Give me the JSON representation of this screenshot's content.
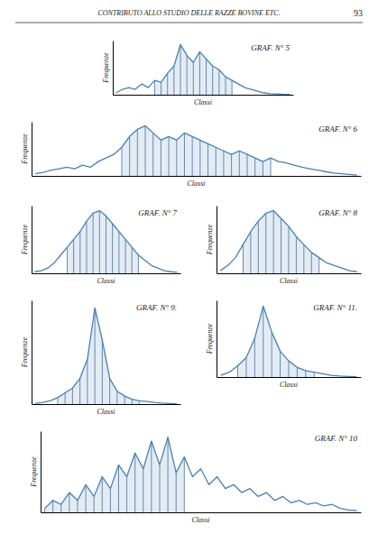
{
  "title": "CONTRIBUTO ALLO STUDIO DELLE RAZZE BOVINE ETC.",
  "annotations": [
    "93"
  ],
  "chart_data": [
    {
      "type": "line",
      "title": "GRAF. N° 5",
      "x_label": "Classi",
      "y_label": "Frequenze",
      "categories": [
        null,
        null,
        null,
        null,
        null,
        null,
        null,
        null,
        null,
        null,
        null,
        null,
        null,
        null,
        null,
        null,
        null,
        null,
        null,
        null,
        null,
        null,
        null,
        null,
        null,
        null,
        null,
        null
      ],
      "series": [
        {
          "type": "line",
          "values": [
            0.5,
            1.5,
            2,
            1.5,
            3,
            2,
            4,
            3.5,
            6,
            8,
            14,
            11,
            9,
            12,
            10,
            8,
            7,
            5,
            4,
            3,
            2,
            1.5,
            1,
            0.5,
            0.3,
            0.2,
            0.1,
            0.1
          ]
        },
        {
          "type": "bar",
          "values": [
            null,
            null,
            null,
            null,
            null,
            null,
            4,
            3.5,
            6,
            8,
            14,
            11,
            9,
            12,
            10,
            8,
            7,
            5,
            4,
            null,
            null,
            null,
            null,
            null,
            null,
            null,
            null,
            null
          ]
        }
      ],
      "ylim": [
        0,
        15.12
      ],
      "tick_labels": false,
      "grid": false
    },
    {
      "type": "line",
      "title": "GRAF. N° 6",
      "x_label": "Classi",
      "y_label": "Frequenze",
      "categories": [
        null,
        null,
        null,
        null,
        null,
        null,
        null,
        null,
        null,
        null,
        null,
        null,
        null,
        null,
        null,
        null,
        null,
        null,
        null,
        null,
        null,
        null,
        null,
        null,
        null,
        null,
        null,
        null,
        null,
        null,
        null,
        null,
        null,
        null,
        null,
        null,
        null,
        null,
        null,
        null,
        null,
        null
      ],
      "series": [
        {
          "type": "line",
          "values": [
            0.3,
            0.5,
            0.8,
            1.0,
            1.2,
            1.0,
            1.5,
            1.2,
            2.0,
            2.5,
            3.0,
            4.0,
            5.5,
            6.5,
            7.0,
            6.0,
            5.0,
            5.5,
            5.0,
            6.0,
            5.5,
            5.0,
            4.5,
            4.0,
            3.5,
            3.0,
            3.5,
            3.0,
            2.5,
            2.0,
            2.5,
            2.0,
            1.8,
            1.5,
            1.2,
            1.0,
            0.8,
            0.6,
            0.4,
            0.3,
            0.2,
            0.1
          ]
        },
        {
          "type": "bar",
          "values": [
            null,
            null,
            null,
            null,
            null,
            null,
            null,
            null,
            null,
            null,
            null,
            4.0,
            5.5,
            6.5,
            7.0,
            6.0,
            5.0,
            5.5,
            5.0,
            6.0,
            5.5,
            5.0,
            4.5,
            4.0,
            3.5,
            3.0,
            3.5,
            3.0,
            2.5,
            2.0,
            2.5,
            null,
            null,
            null,
            null,
            null,
            null,
            null,
            null,
            null,
            null,
            null
          ]
        }
      ],
      "ylim": [
        0,
        7.56
      ],
      "tick_labels": false,
      "grid": false
    },
    {
      "type": "line",
      "title": "GRAF. N° 7",
      "x_label": "Classi",
      "y_label": "Frequenze",
      "categories": [
        null,
        null,
        null,
        null,
        null,
        null,
        null,
        null,
        null,
        null,
        null,
        null,
        null,
        null,
        null,
        null,
        null,
        null,
        null,
        null,
        null,
        null,
        null
      ],
      "series": [
        {
          "type": "line",
          "values": [
            0.3,
            0.5,
            1.0,
            2.0,
            3.5,
            5.0,
            6.5,
            8.0,
            10.0,
            11.5,
            12.0,
            11.0,
            9.5,
            8.0,
            6.5,
            5.0,
            3.5,
            2.5,
            1.5,
            1.0,
            0.5,
            0.3,
            0.2
          ]
        },
        {
          "type": "bar",
          "values": [
            null,
            null,
            null,
            null,
            null,
            5.0,
            6.5,
            8.0,
            10.0,
            11.5,
            12.0,
            11.0,
            9.5,
            8.0,
            6.5,
            5.0,
            3.5,
            null,
            null,
            null,
            null,
            null,
            null
          ]
        }
      ],
      "ylim": [
        0,
        12.96
      ],
      "tick_labels": false,
      "grid": false
    },
    {
      "type": "line",
      "title": "GRAF. N° 8",
      "x_label": "Classi",
      "y_label": "Frequenze",
      "categories": [
        null,
        null,
        null,
        null,
        null,
        null,
        null,
        null,
        null,
        null,
        null,
        null,
        null,
        null,
        null,
        null,
        null,
        null,
        null
      ],
      "series": [
        {
          "type": "line",
          "values": [
            0.5,
            1.5,
            3.0,
            5.5,
            8.0,
            10.0,
            11.5,
            12.0,
            10.5,
            9.0,
            7.0,
            5.5,
            4.0,
            3.0,
            2.0,
            1.5,
            1.0,
            0.5,
            0.3
          ]
        },
        {
          "type": "bar",
          "values": [
            null,
            null,
            null,
            5.5,
            8.0,
            10.0,
            11.5,
            12.0,
            10.5,
            9.0,
            7.0,
            5.5,
            4.0,
            3.0,
            null,
            null,
            null,
            null,
            null
          ]
        }
      ],
      "ylim": [
        0,
        12.96
      ],
      "tick_labels": false,
      "grid": false
    },
    {
      "type": "line",
      "title": "GRAF. N° 9.",
      "x_label": "Classi",
      "y_label": "Frequenze",
      "categories": [
        null,
        null,
        null,
        null,
        null,
        null,
        null,
        null,
        null,
        null,
        null,
        null,
        null,
        null,
        null,
        null,
        null,
        null,
        null,
        null
      ],
      "series": [
        {
          "type": "line",
          "values": [
            0.2,
            0.5,
            1.0,
            2.0,
            3.5,
            5.0,
            8.0,
            14.0,
            30.0,
            20.0,
            8.0,
            4.0,
            2.5,
            1.5,
            1.0,
            0.8,
            0.5,
            0.3,
            0.2,
            0.1
          ]
        },
        {
          "type": "bar",
          "values": [
            null,
            null,
            null,
            2.0,
            3.5,
            5.0,
            8.0,
            14.0,
            30.0,
            20.0,
            8.0,
            4.0,
            2.5,
            1.5,
            1.0,
            null,
            null,
            null,
            null,
            null
          ]
        }
      ],
      "ylim": [
        0,
        32.4
      ],
      "tick_labels": false,
      "grid": false
    },
    {
      "type": "line",
      "title": "GRAF. N° 11.",
      "x_label": "Classi",
      "y_label": "Frequenze",
      "categories": [
        null,
        null,
        null,
        null,
        null,
        null,
        null,
        null,
        null,
        null,
        null,
        null,
        null,
        null,
        null,
        null,
        null
      ],
      "series": [
        {
          "type": "line",
          "values": [
            0.5,
            1.5,
            3.5,
            6.0,
            12.0,
            22.0,
            14.0,
            8.0,
            5.0,
            3.0,
            2.0,
            1.5,
            1.0,
            0.5,
            0.3,
            0.2,
            0.1
          ]
        },
        {
          "type": "bar",
          "values": [
            null,
            null,
            3.5,
            6.0,
            12.0,
            22.0,
            14.0,
            8.0,
            5.0,
            3.0,
            2.0,
            1.5,
            null,
            null,
            null,
            null,
            null
          ]
        }
      ],
      "ylim": [
        0,
        23.76
      ],
      "tick_labels": false,
      "grid": false
    },
    {
      "type": "line",
      "title": "GRAF. N° 10",
      "x_label": "Classi",
      "y_label": "Frequenze",
      "categories": [
        null,
        null,
        null,
        null,
        null,
        null,
        null,
        null,
        null,
        null,
        null,
        null,
        null,
        null,
        null,
        null,
        null,
        null,
        null,
        null,
        null,
        null,
        null,
        null,
        null,
        null,
        null,
        null,
        null,
        null,
        null,
        null,
        null,
        null,
        null,
        null,
        null,
        null,
        null
      ],
      "series": [
        {
          "type": "line",
          "values": [
            0.5,
            1.5,
            1.0,
            2.5,
            1.5,
            3.5,
            2.0,
            4.5,
            3.0,
            6.0,
            4.5,
            7.5,
            5.5,
            9.0,
            6.0,
            9.5,
            5.0,
            7.0,
            4.5,
            5.5,
            3.5,
            4.5,
            3.0,
            3.5,
            2.5,
            3.0,
            2.0,
            2.5,
            1.5,
            2.0,
            1.2,
            1.5,
            1.0,
            1.2,
            0.8,
            1.0,
            0.5,
            0.3,
            0.2
          ]
        },
        {
          "type": "bar",
          "values": [
            0.5,
            1.5,
            1.0,
            2.5,
            1.5,
            3.5,
            2.0,
            4.5,
            3.0,
            6.0,
            4.5,
            7.5,
            5.5,
            9.0,
            6.0,
            9.5,
            5.0,
            7.0,
            null,
            null,
            null,
            null,
            null,
            null,
            null,
            null,
            null,
            null,
            null,
            null,
            null,
            null,
            null,
            null,
            null,
            null,
            null,
            null,
            null
          ]
        }
      ],
      "ylim": [
        0,
        10.26
      ],
      "tick_labels": false,
      "grid": false
    }
  ]
}
